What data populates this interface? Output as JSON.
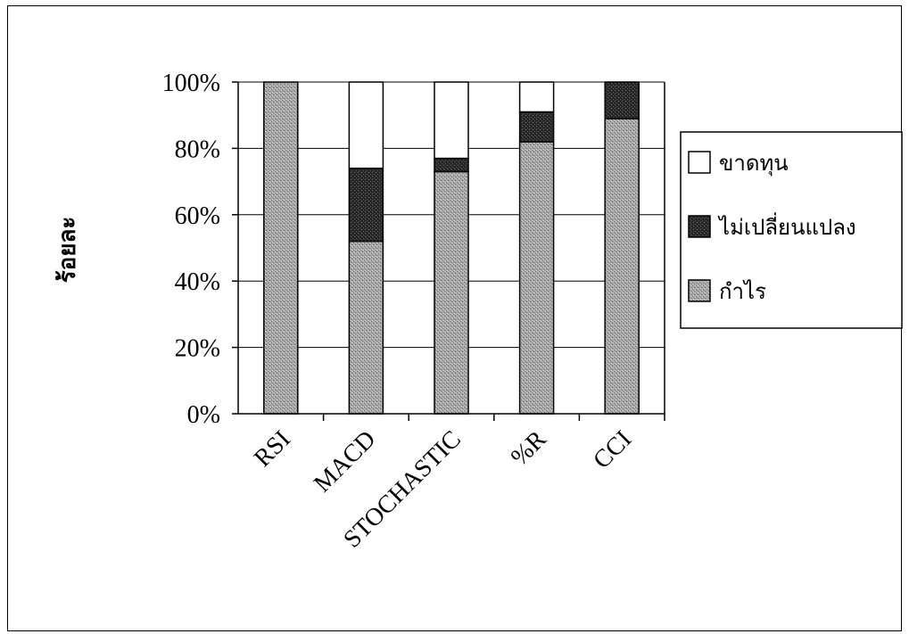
{
  "chart_data": {
    "type": "bar",
    "stacked": true,
    "percent_stacked": true,
    "categories": [
      "RSI",
      "MACD",
      "STOCHASTIC",
      "%R",
      "CCI"
    ],
    "series": [
      {
        "name": "กำไร",
        "values": [
          100,
          52,
          73,
          82,
          89
        ],
        "color": "#9e9e9e"
      },
      {
        "name": "ไม่เปลี่ยนแปลง",
        "values": [
          0,
          22,
          4,
          9,
          11
        ],
        "color": "#2e2e2e"
      },
      {
        "name": "ขาดทุน",
        "values": [
          0,
          26,
          23,
          9,
          0
        ],
        "color": "#ffffff"
      }
    ],
    "title": "",
    "xlabel": "",
    "ylabel": "ร้อยละ",
    "ylim": [
      0,
      100
    ],
    "yticks": [
      "0%",
      "20%",
      "40%",
      "60%",
      "80%",
      "100%"
    ],
    "grid": true,
    "legend_placement": "right"
  }
}
